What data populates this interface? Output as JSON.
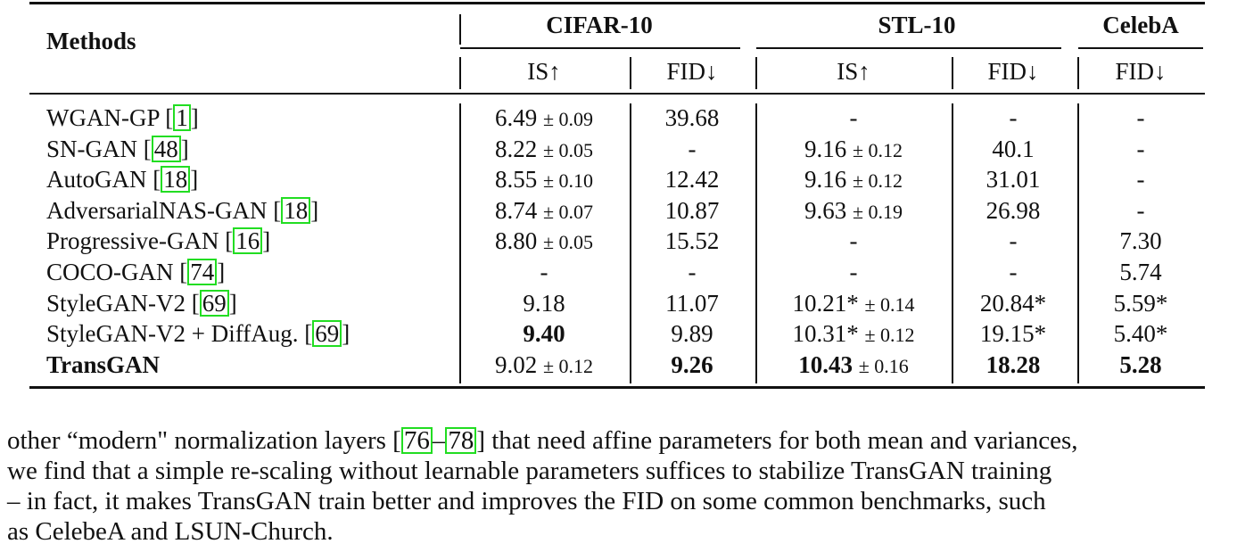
{
  "table": {
    "headers": {
      "methods": "Methods",
      "groups": [
        {
          "name": "CIFAR-10",
          "cols": [
            "IS↑",
            "FID↓"
          ]
        },
        {
          "name": "STL-10",
          "cols": [
            "IS↑",
            "FID↓"
          ]
        },
        {
          "name": "CelebA",
          "cols": [
            "FID↓"
          ]
        }
      ]
    },
    "rows": [
      {
        "method": "WGAN-GP [",
        "ref": "1",
        "tail": "]",
        "bold": false,
        "cells": [
          {
            "v": "6.49",
            "pm": "± 0.09"
          },
          {
            "v": "39.68"
          },
          {
            "v": "-"
          },
          {
            "v": "-"
          },
          {
            "v": "-"
          }
        ]
      },
      {
        "method": "SN-GAN [",
        "ref": "48",
        "tail": "]",
        "bold": false,
        "cells": [
          {
            "v": "8.22",
            "pm": "± 0.05"
          },
          {
            "v": "-"
          },
          {
            "v": "9.16",
            "pm": "± 0.12"
          },
          {
            "v": "40.1"
          },
          {
            "v": "-"
          }
        ]
      },
      {
        "method": "AutoGAN [",
        "ref": "18",
        "tail": "]",
        "bold": false,
        "cells": [
          {
            "v": "8.55",
            "pm": "± 0.10"
          },
          {
            "v": "12.42"
          },
          {
            "v": "9.16",
            "pm": "± 0.12"
          },
          {
            "v": "31.01"
          },
          {
            "v": "-"
          }
        ]
      },
      {
        "method": "AdversarialNAS-GAN [",
        "ref": "18",
        "tail": "]",
        "bold": false,
        "cells": [
          {
            "v": "8.74",
            "pm": "± 0.07"
          },
          {
            "v": "10.87"
          },
          {
            "v": "9.63",
            "pm": "± 0.19"
          },
          {
            "v": "26.98"
          },
          {
            "v": "-"
          }
        ]
      },
      {
        "method": "Progressive-GAN [",
        "ref": "16",
        "tail": "]",
        "bold": false,
        "cells": [
          {
            "v": "8.80",
            "pm": "± 0.05"
          },
          {
            "v": "15.52"
          },
          {
            "v": "-"
          },
          {
            "v": "-"
          },
          {
            "v": "7.30"
          }
        ]
      },
      {
        "method": "COCO-GAN [",
        "ref": "74",
        "tail": "]",
        "bold": false,
        "cells": [
          {
            "v": "-"
          },
          {
            "v": "-"
          },
          {
            "v": "-"
          },
          {
            "v": "-"
          },
          {
            "v": "5.74"
          }
        ]
      },
      {
        "method": "StyleGAN-V2  [",
        "ref": "69",
        "tail": "]",
        "bold": false,
        "cells": [
          {
            "v": "9.18"
          },
          {
            "v": "11.07"
          },
          {
            "v": "10.21*",
            "pm": "± 0.14"
          },
          {
            "v": "20.84*"
          },
          {
            "v": "5.59*"
          }
        ]
      },
      {
        "method": "StyleGAN-V2 + DiffAug. [",
        "ref": "69",
        "tail": "]",
        "bold": false,
        "cells": [
          {
            "v": "9.40",
            "b": true
          },
          {
            "v": "9.89"
          },
          {
            "v": "10.31*",
            "pm": "± 0.12"
          },
          {
            "v": "19.15*"
          },
          {
            "v": "5.40*"
          }
        ]
      },
      {
        "method": "TransGAN",
        "ref": "",
        "tail": "",
        "bold": true,
        "cells": [
          {
            "v": "9.02",
            "pm": "± 0.12"
          },
          {
            "v": "9.26",
            "b": true
          },
          {
            "v": "10.43",
            "pm": "± 0.16",
            "b": true
          },
          {
            "v": "18.28",
            "b": true
          },
          {
            "v": "5.28",
            "b": true
          }
        ]
      }
    ]
  },
  "paragraph": {
    "line1_a": "other “modern\" normalization layers [",
    "line1_ref1": "76",
    "line1_dash": "–",
    "line1_ref2": "78",
    "line1_b": "] that need affine parameters for both mean and variances,",
    "line2": "we find that a simple re-scaling without learnable parameters suffices to stabilize TransGAN training",
    "line3": "– in fact, it makes TransGAN train better and improves the FID on some common benchmarks, such",
    "line4": "as CelebeA and LSUN-Church."
  }
}
